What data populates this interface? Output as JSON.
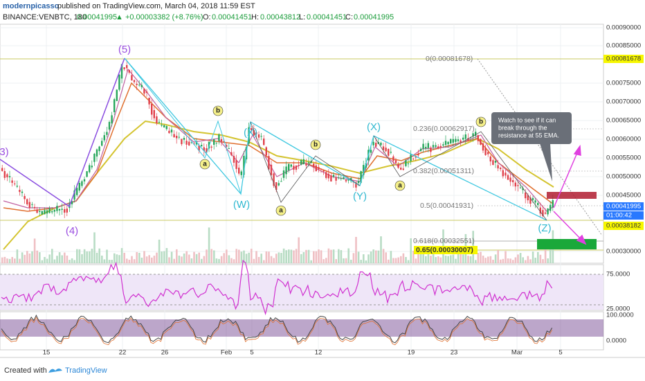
{
  "header": {
    "author": "modernpicasso",
    "published": "published on TradingView.com, March 04, 2018 11:59 EST"
  },
  "symbol": {
    "name": "BINANCE:VENBTC, 180",
    "price": "0.00041995",
    "change": "▲ +0.00003382 (+8.76%)",
    "o_label": "O:",
    "o": "0.00041451",
    "h_label": "H:",
    "h": "0.00043812",
    "l_label": "L:",
    "l": "0.00041451",
    "c_label": "C:",
    "c": "0.00041995"
  },
  "price_axis": [
    "0.00090000",
    "0.00085000",
    "0.00075000",
    "0.00070000",
    "0.00065000",
    "0.00060000",
    "0.00055000",
    "0.00050000",
    "0.00045000",
    "0.00030000"
  ],
  "price_tags": [
    "0.00081678",
    "0.00041995",
    "0.00038182"
  ],
  "countdown": "01:00:42",
  "fib_levels": [
    "0(0.00081678)",
    "0.236(0.00062917)",
    "0.382(0.00051311)",
    "0.5(0.00041931)",
    "0.618(0.00032551)",
    "0.65(0.00030007)"
  ],
  "wave_labels": [
    "(5)",
    "(4)",
    "3)",
    "b",
    "a",
    "(X)",
    "(W)",
    "a",
    "b",
    "(Y)",
    "(X)",
    "a",
    "b",
    "(Z)"
  ],
  "note": [
    "Watch to see if it can",
    "break through the",
    "resistance at 55 EMA."
  ],
  "rsi_axis": [
    "75.0000",
    "25.0000"
  ],
  "stoch_axis": [
    "100.0000",
    "0.0000"
  ],
  "date_axis": [
    "15",
    "22",
    "26",
    "Feb",
    "5",
    "12",
    "19",
    "23",
    "Mar",
    "5"
  ],
  "footer": {
    "created": "Created with",
    "brand": "TradingView"
  }
}
